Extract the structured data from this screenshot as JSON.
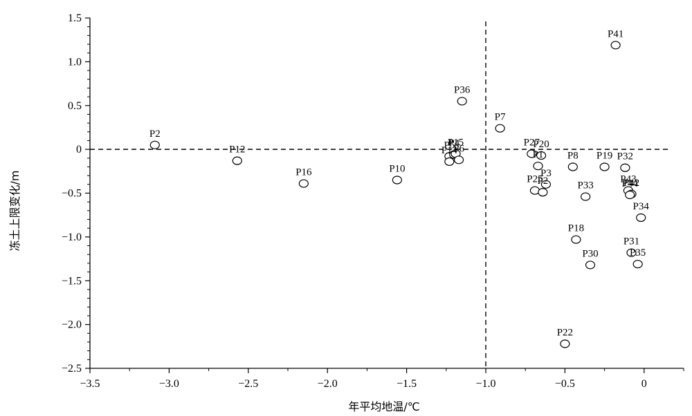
{
  "chart_data": {
    "type": "scatter",
    "title": "",
    "xlabel": "年平均地温/℃",
    "ylabel": "冻土上限变化/m",
    "xlim": [
      -3.5,
      0.25
    ],
    "ylim": [
      -2.5,
      1.5
    ],
    "x_ticks": [
      -3.5,
      -3.0,
      -2.5,
      -2.0,
      -1.5,
      -1.0,
      -0.5,
      0
    ],
    "x_tick_labels": [
      "−3.5",
      "−3.0",
      "−2.5",
      "−2.0",
      "−1.5",
      "−1.0",
      "−0.5",
      "0"
    ],
    "y_ticks": [
      -2.5,
      -2.0,
      -1.5,
      -1.0,
      -0.5,
      0,
      0.5,
      1.0,
      1.5
    ],
    "y_tick_labels": [
      "−2.5",
      "−2.0",
      "−1.5",
      "−1.0",
      "−0.5",
      "0",
      "0.5",
      "1.0",
      "1.5"
    ],
    "reference_lines": {
      "x": -1.0,
      "y": 0
    },
    "grid": false,
    "legend": "none",
    "marker": "open-ellipse",
    "points": [
      {
        "label": "P2",
        "x": -3.09,
        "y": 0.05
      },
      {
        "label": "P12",
        "x": -2.57,
        "y": -0.13
      },
      {
        "label": "P16",
        "x": -2.15,
        "y": -0.39
      },
      {
        "label": "P10",
        "x": -1.56,
        "y": -0.35
      },
      {
        "label": "P5",
        "x": -1.23,
        "y": -0.08
      },
      {
        "label": "P4",
        "x": -1.2,
        "y": -0.06
      },
      {
        "label": "P15",
        "x": -1.19,
        "y": -0.05
      },
      {
        "label": "P14",
        "x": -1.23,
        "y": -0.14
      },
      {
        "label": "P6",
        "x": -1.17,
        "y": -0.12
      },
      {
        "label": "P36",
        "x": -1.15,
        "y": 0.55
      },
      {
        "label": "P7",
        "x": -0.91,
        "y": 0.24
      },
      {
        "label": "P27",
        "x": -0.71,
        "y": -0.05
      },
      {
        "label": "P20",
        "x": -0.65,
        "y": -0.07
      },
      {
        "label": "P1",
        "x": -0.67,
        "y": -0.19
      },
      {
        "label": "P3",
        "x": -0.62,
        "y": -0.4
      },
      {
        "label": "P25",
        "x": -0.69,
        "y": -0.47
      },
      {
        "label": "P2",
        "x": -0.64,
        "y": -0.49
      },
      {
        "label": "P8",
        "x": -0.45,
        "y": -0.2
      },
      {
        "label": "P19",
        "x": -0.25,
        "y": -0.2
      },
      {
        "label": "P32",
        "x": -0.12,
        "y": -0.21
      },
      {
        "label": "P33",
        "x": -0.37,
        "y": -0.54
      },
      {
        "label": "P43",
        "x": -0.1,
        "y": -0.47
      },
      {
        "label": "P42",
        "x": -0.08,
        "y": -0.51
      },
      {
        "label": "P44",
        "x": -0.09,
        "y": -0.52
      },
      {
        "label": "P34",
        "x": -0.02,
        "y": -0.78
      },
      {
        "label": "P18",
        "x": -0.43,
        "y": -1.03
      },
      {
        "label": "P31",
        "x": -0.08,
        "y": -1.18
      },
      {
        "label": "P30",
        "x": -0.34,
        "y": -1.32
      },
      {
        "label": "P35",
        "x": -0.04,
        "y": -1.31
      },
      {
        "label": "P41",
        "x": -0.18,
        "y": 1.19
      },
      {
        "label": "P22",
        "x": -0.5,
        "y": -2.22
      }
    ]
  }
}
